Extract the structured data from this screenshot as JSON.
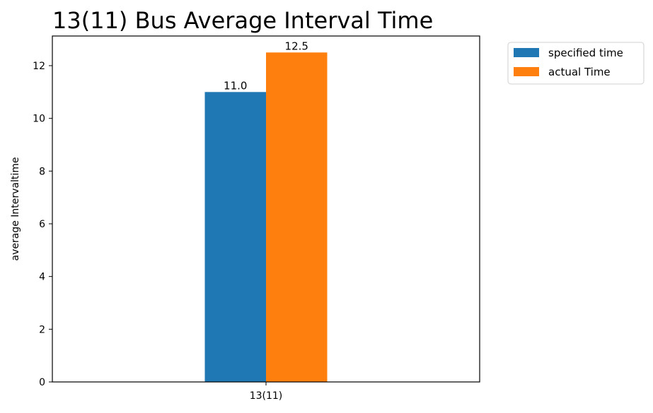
{
  "chart_data": {
    "type": "bar",
    "title": "13(11) Bus Average Interval Time",
    "xlabel": "",
    "ylabel": "average Intervaltime",
    "categories": [
      "13(11)"
    ],
    "series": [
      {
        "name": "specified time",
        "values": [
          11.0
        ],
        "color": "#1f77b4",
        "label": "11.0"
      },
      {
        "name": "actual Time",
        "values": [
          12.5
        ],
        "color": "#ff7f0e",
        "label": "12.5"
      }
    ],
    "ylim": [
      0,
      13.125
    ],
    "yticks": [
      0,
      2,
      4,
      6,
      8,
      10,
      12
    ],
    "grid": false,
    "legend_position": "outside-top-right"
  }
}
